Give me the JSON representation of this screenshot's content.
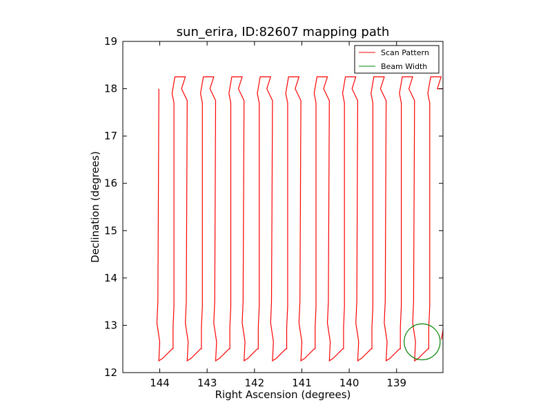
{
  "chart_data": {
    "type": "line",
    "title": "sun_erira, ID:82607 mapping path",
    "xlabel": "Right Ascension (degrees)",
    "ylabel": "Declination (degrees)",
    "xlim": [
      144.78,
      138.02
    ],
    "ylim": [
      12,
      19
    ],
    "x_inverted": true,
    "xticks": [
      144,
      143,
      142,
      141,
      140,
      139
    ],
    "xtick_labels": [
      "144",
      "143",
      "142",
      "141",
      "140",
      "139"
    ],
    "yticks": [
      12,
      13,
      14,
      15,
      16,
      17,
      18,
      19
    ],
    "ytick_labels": [
      "12",
      "13",
      "14",
      "15",
      "16",
      "17",
      "18",
      "19"
    ],
    "grid": false,
    "legend_position": "top-right",
    "series": [
      {
        "name": "Scan Pattern",
        "color": "#ff0000",
        "scan_columns_ra": [
          144.02,
          143.72,
          143.42,
          143.12,
          142.82,
          142.52,
          142.22,
          141.92,
          141.62,
          141.32,
          141.02,
          140.72,
          140.42,
          140.12,
          139.82,
          139.52,
          139.22,
          138.92,
          138.62,
          138.32
        ],
        "dec_start": 18.0,
        "dec_low": 12.25,
        "dec_high": 18.25,
        "column_spacing": 0.3
      },
      {
        "name": "Beam Width",
        "color": "#008000",
        "center_ra": 138.46,
        "center_dec": 12.65,
        "radius": 0.38
      }
    ]
  }
}
